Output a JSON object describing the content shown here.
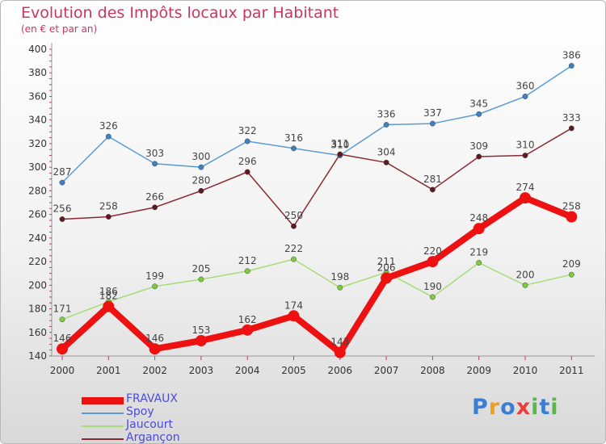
{
  "title": "Evolution des Impôts locaux par Habitant",
  "subtitle": "(en € et par an)",
  "logo": {
    "text": "Proxiti",
    "letters": [
      "P",
      "r",
      "o",
      "x",
      "i",
      "t",
      "i"
    ],
    "colors": [
      "#3a7fd5",
      "#f0a020",
      "#3a7fd5",
      "#e83f3f",
      "#58b84a",
      "#3a7fd5",
      "#58b84a"
    ]
  },
  "chart_data": {
    "type": "line",
    "categories": [
      "2000",
      "2001",
      "2002",
      "2003",
      "2004",
      "2005",
      "2006",
      "2007",
      "2008",
      "2009",
      "2010",
      "2011"
    ],
    "ylim": [
      140,
      400
    ],
    "yticks": [
      140,
      160,
      180,
      200,
      220,
      240,
      260,
      280,
      300,
      320,
      340,
      360,
      380,
      400
    ],
    "grid": false,
    "legend_position": "bottom-left",
    "series": [
      {
        "name": "FRAVAUX",
        "color": "#ee1111",
        "emphasis": true,
        "values": [
          146,
          182,
          146,
          153,
          162,
          174,
          143,
          206,
          220,
          248,
          274,
          258
        ],
        "labels": [
          "146",
          "182",
          "146",
          "153",
          "162",
          "174",
          "143",
          "206",
          "220",
          "248",
          "274",
          "258"
        ]
      },
      {
        "name": "Spoy",
        "color": "#5b9bd5",
        "point_color": "#3d80c4",
        "emphasis": false,
        "values": [
          287,
          326,
          303,
          300,
          322,
          316,
          310,
          336,
          337,
          345,
          360,
          386
        ],
        "labels": [
          "287",
          "326",
          "303",
          "300",
          "322",
          "316",
          "310",
          "336",
          "337",
          "345",
          "360",
          "386"
        ]
      },
      {
        "name": "Jaucourt",
        "color": "#a8dc78",
        "point_color": "#7ccc3c",
        "emphasis": false,
        "values": [
          171,
          186,
          199,
          205,
          212,
          222,
          198,
          211,
          190,
          219,
          200,
          209
        ],
        "labels": [
          "171",
          "186",
          "199",
          "205",
          "212",
          "222",
          "198",
          "211",
          "190",
          "219",
          "200",
          "209"
        ]
      },
      {
        "name": "Argançon",
        "color": "#8b2a35",
        "point_color": "#5c1a22",
        "emphasis": false,
        "values": [
          256,
          258,
          266,
          280,
          296,
          250,
          311,
          304,
          281,
          309,
          310,
          333
        ],
        "labels": [
          "256",
          "258",
          "266",
          "280",
          "296",
          "250",
          "311",
          "304",
          "281",
          "309",
          "310",
          "333"
        ]
      }
    ]
  }
}
